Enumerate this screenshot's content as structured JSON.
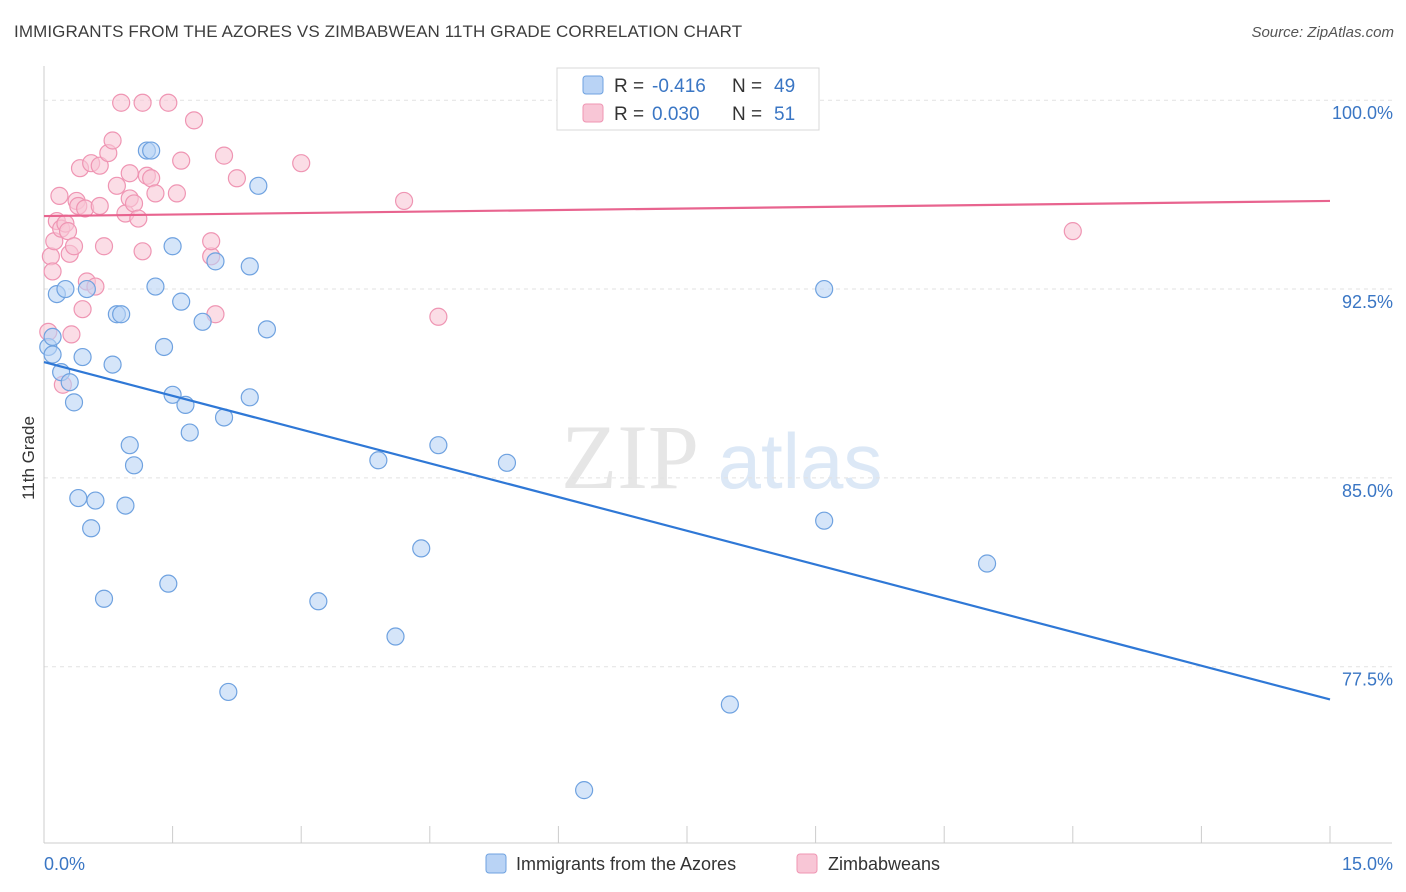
{
  "title": "IMMIGRANTS FROM THE AZORES VS ZIMBABWEAN 11TH GRADE CORRELATION CHART",
  "source": "Source: ZipAtlas.com",
  "watermark_zip": "ZIP",
  "watermark_atlas": "atlas",
  "legend_box": {
    "rows": [
      {
        "r_label": "R =",
        "r_value": "-0.416",
        "n_label": "N =",
        "n_value": "49"
      },
      {
        "r_label": "R =",
        "r_value": "0.030",
        "n_label": "N =",
        "n_value": "51"
      }
    ]
  },
  "bottom_legend": [
    "Immigrants from the Azores",
    "Zimbabweans"
  ],
  "chart_data": {
    "type": "scatter",
    "title": "IMMIGRANTS FROM THE AZORES VS ZIMBABWEAN 11TH GRADE CORRELATION CHART",
    "xlabel": "",
    "ylabel": "11th Grade",
    "xlim": [
      0,
      15
    ],
    "ylim": [
      70.5,
      101.2
    ],
    "x_tick_labels": [
      "0.0%",
      "15.0%"
    ],
    "y_ticks": [
      77.5,
      85.0,
      92.5,
      100.0
    ],
    "y_tick_labels": [
      "77.5%",
      "85.0%",
      "92.5%",
      "100.0%"
    ],
    "grid": true,
    "legend_position": "top-center",
    "colors": {
      "azores_fill": "#b9d3f5",
      "azores_stroke": "#6fa2e0",
      "azores_line": "#2f78d6",
      "zim_fill": "#f8c6d6",
      "zim_stroke": "#ef95b3",
      "zim_line": "#e8648f",
      "tick_label": "#3a76c4"
    },
    "series": [
      {
        "name": "Immigrants from the Azores",
        "r": -0.416,
        "n": 49,
        "trend": [
          [
            0,
            89.6
          ],
          [
            15,
            76.2
          ]
        ],
        "points": [
          [
            0.05,
            90.2
          ],
          [
            0.1,
            90.6
          ],
          [
            0.15,
            92.3
          ],
          [
            0.2,
            89.2
          ],
          [
            0.25,
            92.5
          ],
          [
            0.3,
            88.8
          ],
          [
            0.35,
            88.0
          ],
          [
            0.4,
            84.2
          ],
          [
            0.45,
            89.8
          ],
          [
            0.5,
            92.5
          ],
          [
            0.55,
            83.0
          ],
          [
            0.6,
            84.1
          ],
          [
            0.7,
            80.2
          ],
          [
            0.8,
            89.5
          ],
          [
            0.85,
            91.5
          ],
          [
            0.9,
            91.5
          ],
          [
            0.95,
            83.9
          ],
          [
            1.0,
            86.3
          ],
          [
            1.05,
            85.5
          ],
          [
            1.2,
            98.0
          ],
          [
            1.25,
            98.0
          ],
          [
            1.3,
            92.6
          ],
          [
            1.4,
            90.2
          ],
          [
            1.45,
            80.8
          ],
          [
            1.5,
            94.2
          ],
          [
            1.5,
            88.3
          ],
          [
            1.6,
            92.0
          ],
          [
            1.65,
            87.9
          ],
          [
            1.7,
            86.8
          ],
          [
            1.85,
            91.2
          ],
          [
            2.0,
            93.6
          ],
          [
            2.1,
            87.4
          ],
          [
            2.15,
            76.5
          ],
          [
            2.4,
            88.2
          ],
          [
            2.4,
            93.4
          ],
          [
            2.5,
            96.6
          ],
          [
            2.6,
            90.9
          ],
          [
            3.2,
            80.1
          ],
          [
            3.9,
            85.7
          ],
          [
            4.1,
            78.7
          ],
          [
            4.4,
            82.2
          ],
          [
            4.6,
            86.3
          ],
          [
            5.4,
            85.6
          ],
          [
            6.3,
            72.6
          ],
          [
            8.0,
            76.0
          ],
          [
            9.1,
            92.5
          ],
          [
            9.1,
            83.3
          ],
          [
            11.0,
            81.6
          ],
          [
            0.1,
            89.9
          ]
        ]
      },
      {
        "name": "Zimbabweans",
        "r": 0.03,
        "n": 51,
        "trend": [
          [
            0,
            95.4
          ],
          [
            15,
            96.0
          ]
        ],
        "points": [
          [
            0.05,
            90.8
          ],
          [
            0.08,
            93.8
          ],
          [
            0.1,
            93.2
          ],
          [
            0.12,
            94.4
          ],
          [
            0.15,
            95.2
          ],
          [
            0.18,
            96.2
          ],
          [
            0.2,
            94.9
          ],
          [
            0.22,
            88.7
          ],
          [
            0.25,
            95.1
          ],
          [
            0.28,
            94.8
          ],
          [
            0.3,
            93.9
          ],
          [
            0.32,
            90.7
          ],
          [
            0.35,
            94.2
          ],
          [
            0.38,
            96.0
          ],
          [
            0.4,
            95.8
          ],
          [
            0.42,
            97.3
          ],
          [
            0.45,
            91.7
          ],
          [
            0.48,
            95.7
          ],
          [
            0.5,
            92.8
          ],
          [
            0.55,
            97.5
          ],
          [
            0.6,
            92.6
          ],
          [
            0.65,
            97.4
          ],
          [
            0.7,
            94.2
          ],
          [
            0.75,
            97.9
          ],
          [
            0.8,
            98.4
          ],
          [
            0.85,
            96.6
          ],
          [
            0.9,
            99.9
          ],
          [
            0.95,
            95.5
          ],
          [
            1.0,
            96.1
          ],
          [
            1.0,
            97.1
          ],
          [
            1.05,
            95.9
          ],
          [
            1.1,
            95.3
          ],
          [
            1.15,
            94.0
          ],
          [
            1.2,
            97.0
          ],
          [
            1.25,
            96.9
          ],
          [
            1.3,
            96.3
          ],
          [
            1.45,
            99.9
          ],
          [
            1.55,
            96.3
          ],
          [
            1.6,
            97.6
          ],
          [
            1.75,
            99.2
          ],
          [
            1.95,
            93.8
          ],
          [
            1.95,
            94.4
          ],
          [
            2.0,
            91.5
          ],
          [
            2.1,
            97.8
          ],
          [
            2.25,
            96.9
          ],
          [
            3.0,
            97.5
          ],
          [
            4.2,
            96.0
          ],
          [
            4.6,
            91.4
          ],
          [
            12.0,
            94.8
          ],
          [
            1.15,
            99.9
          ],
          [
            0.65,
            95.8
          ]
        ]
      }
    ]
  }
}
